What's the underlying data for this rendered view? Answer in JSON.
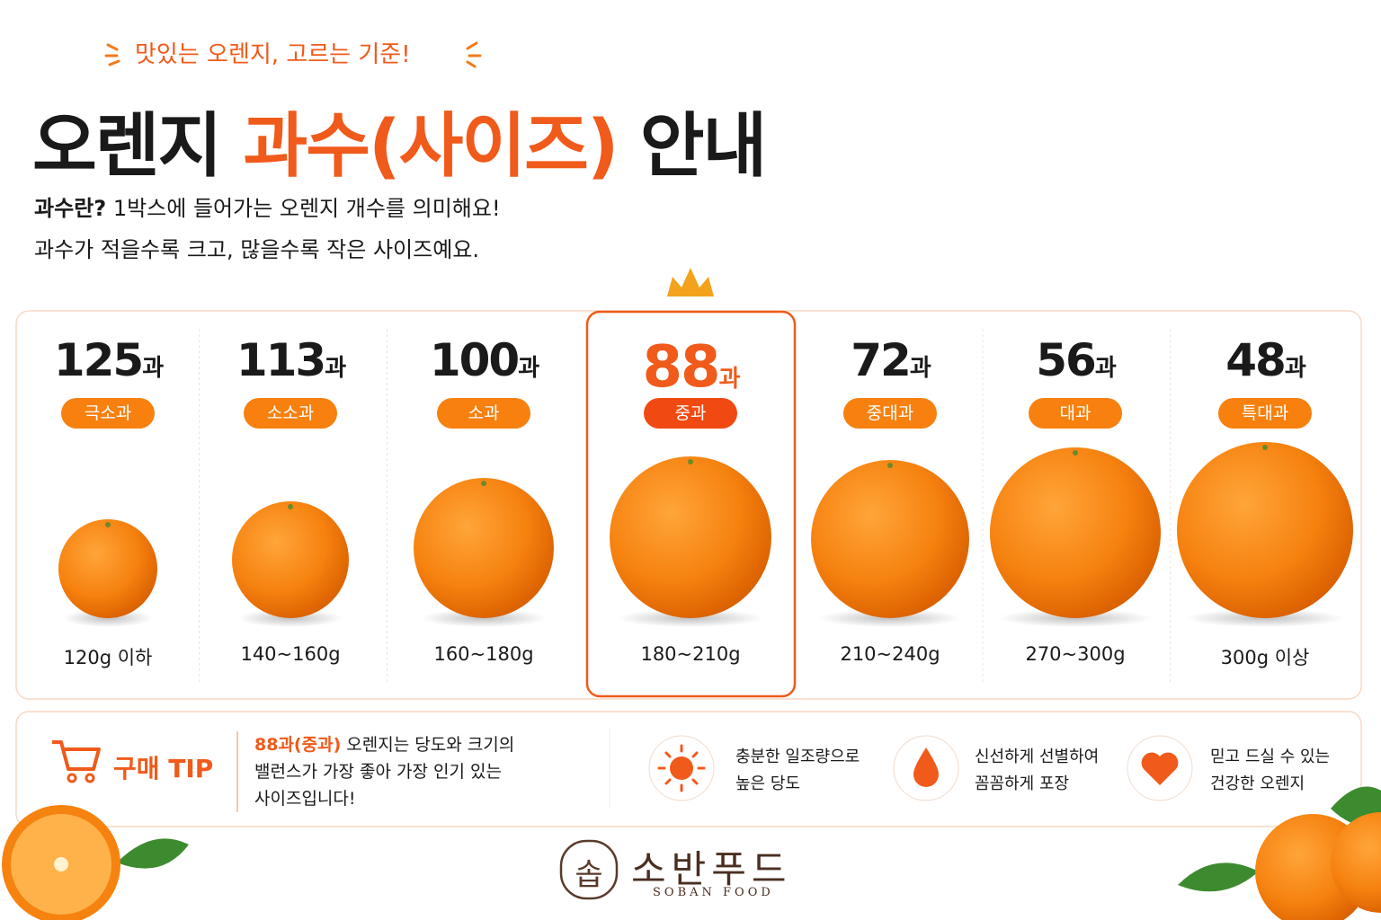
{
  "header": {
    "tagline": "맛있는 오렌지, 고르는 기준!",
    "title_prefix": "오렌지",
    "title_highlight": "과수(사이즈)",
    "title_suffix": "안내",
    "intro_label": "과수란?",
    "intro_text": "1박스에 들어가는 오렌지 개수를 의미해요!",
    "intro_line2": "과수가 적을수록 크고, 많을수록 작은 사이즈예요."
  },
  "sizes": [
    {
      "count": 125,
      "unit": "과",
      "grade": "극소과",
      "weight": "120g 이하"
    },
    {
      "count": 113,
      "unit": "과",
      "grade": "소소과",
      "weight": "140~160g"
    },
    {
      "count": 100,
      "unit": "과",
      "grade": "소과",
      "weight": "160~180g"
    },
    {
      "count": 88,
      "unit": "과",
      "grade": "중과",
      "weight": "180~210g"
    },
    {
      "count": 72,
      "unit": "과",
      "grade": "중대과",
      "weight": "210~240g"
    },
    {
      "count": 56,
      "unit": "과",
      "grade": "대과",
      "weight": "270~300g"
    },
    {
      "count": 48,
      "unit": "과",
      "grade": "특대과",
      "weight": "300g 이상"
    }
  ],
  "tip": {
    "title": "구매 TIP",
    "highlight": "88과(중과)",
    "lines": [
      "오렌지는 당도와 크기의",
      "밸런스가 가장 좋아 가장 인기 있는",
      "사이즈입니다!"
    ]
  },
  "features": [
    {
      "line1": "충분한 일조량으로",
      "line2": "높은 당도"
    },
    {
      "line1": "신선하게 선별하여",
      "line2": "꼼꼼하게 포장"
    },
    {
      "line1": "믿고 드실 수 있는",
      "line2": "건강한 오렌지"
    }
  ],
  "brand": {
    "logo": "솝",
    "name": "소반푸드",
    "english": "SOBAN FOOD"
  }
}
